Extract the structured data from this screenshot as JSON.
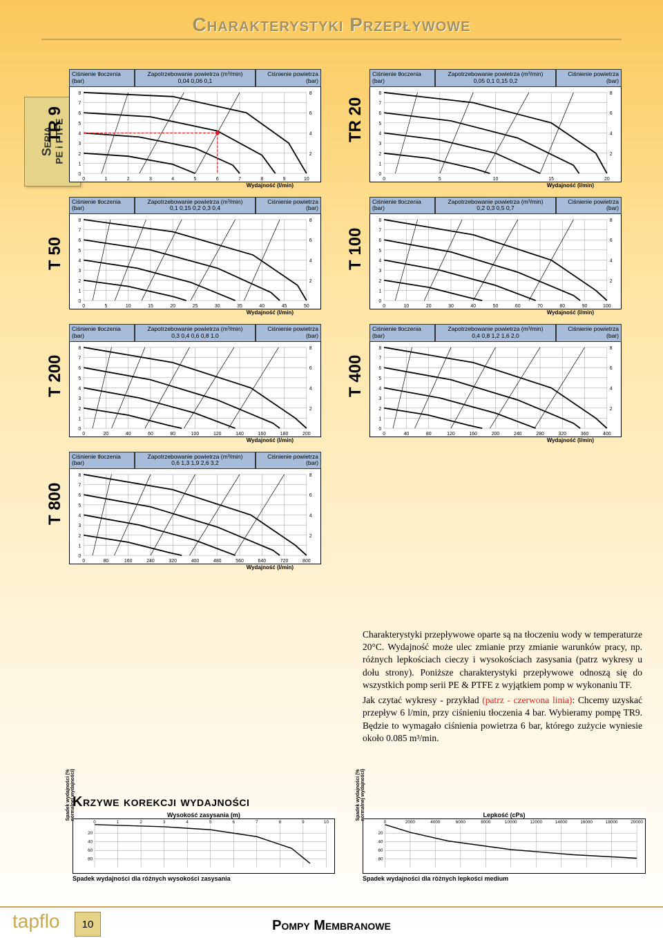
{
  "page_title": "Charakterystyki Przepływowe",
  "side_label_line1": "Seria",
  "side_label_line2": "PE i PTFE",
  "common": {
    "head_left": "Ciśnienie tłoczenia (bar)",
    "head_mid_prefix": "Zapotrzebowanie powietrza (m³/min)",
    "head_right": "Ciśnienie powietrza (bar)",
    "xlabel": "Wydajność (l/min)",
    "y_ticks": [
      0,
      1,
      2,
      3,
      4,
      5,
      6,
      7,
      8
    ],
    "right_ticks": [
      2,
      4,
      6,
      8
    ],
    "grid_color": "#999",
    "curve_color": "#000",
    "bg_color": "#ffffff",
    "head_bg": "#a6bcd9"
  },
  "charts": [
    {
      "model": "TR 9",
      "air_vals": "0,04   0,06   0,1",
      "x_ticks": [
        0,
        1,
        2,
        3,
        4,
        5,
        6,
        7,
        8,
        9,
        10
      ],
      "example_line": true,
      "curves": [
        [
          [
            0,
            8
          ],
          [
            4,
            7.6
          ],
          [
            7.3,
            6
          ],
          [
            9.2,
            3
          ],
          [
            10,
            0
          ]
        ],
        [
          [
            0,
            6
          ],
          [
            3,
            5.6
          ],
          [
            6,
            4.2
          ],
          [
            8,
            1.8
          ],
          [
            8.6,
            0
          ]
        ],
        [
          [
            0,
            4
          ],
          [
            2.5,
            3.6
          ],
          [
            5,
            2.5
          ],
          [
            6.7,
            0.8
          ],
          [
            7,
            0
          ]
        ],
        [
          [
            0,
            2
          ],
          [
            2,
            1.7
          ],
          [
            4,
            0.9
          ],
          [
            5,
            0
          ]
        ]
      ],
      "air_curves": [
        [
          [
            2,
            8
          ],
          [
            0.8,
            0
          ]
        ],
        [
          [
            4.5,
            8
          ],
          [
            2.5,
            0
          ]
        ],
        [
          [
            7,
            8
          ],
          [
            5,
            0
          ]
        ]
      ]
    },
    {
      "model": "TR 20",
      "air_vals": "0,05   0,1   0,15   0,2",
      "x_ticks": [
        0,
        5,
        10,
        15,
        20
      ],
      "curves": [
        [
          [
            0,
            8
          ],
          [
            8,
            7
          ],
          [
            15,
            5
          ],
          [
            19,
            2
          ],
          [
            20,
            0
          ]
        ],
        [
          [
            0,
            6
          ],
          [
            6,
            5.2
          ],
          [
            12,
            3.5
          ],
          [
            17,
            0.8
          ],
          [
            17.5,
            0
          ]
        ],
        [
          [
            0,
            4
          ],
          [
            5,
            3.3
          ],
          [
            10,
            2
          ],
          [
            14,
            0
          ]
        ],
        [
          [
            0,
            2
          ],
          [
            4,
            1.5
          ],
          [
            8,
            0.5
          ],
          [
            9.5,
            0
          ]
        ]
      ],
      "air_curves": [
        [
          [
            3,
            8
          ],
          [
            1,
            0
          ]
        ],
        [
          [
            8,
            8
          ],
          [
            5,
            0
          ]
        ],
        [
          [
            13,
            8
          ],
          [
            9,
            0
          ]
        ],
        [
          [
            17,
            8
          ],
          [
            14,
            0
          ]
        ]
      ]
    },
    {
      "model": "T 50",
      "air_vals": "0,1   0,15   0,2   0,3   0,4",
      "x_ticks": [
        0,
        5,
        10,
        15,
        20,
        25,
        30,
        35,
        40,
        45,
        50
      ],
      "curves": [
        [
          [
            0,
            8
          ],
          [
            20,
            6.8
          ],
          [
            38,
            4.5
          ],
          [
            48,
            1.5
          ],
          [
            50,
            0
          ]
        ],
        [
          [
            0,
            6
          ],
          [
            15,
            5
          ],
          [
            30,
            3.2
          ],
          [
            42,
            0.8
          ],
          [
            44,
            0
          ]
        ],
        [
          [
            0,
            4
          ],
          [
            12,
            3.2
          ],
          [
            24,
            1.8
          ],
          [
            34,
            0
          ]
        ],
        [
          [
            0,
            2
          ],
          [
            10,
            1.4
          ],
          [
            20,
            0.4
          ],
          [
            23,
            0
          ]
        ]
      ],
      "air_curves": [
        [
          [
            6,
            8
          ],
          [
            2,
            0
          ]
        ],
        [
          [
            14,
            8
          ],
          [
            7,
            0
          ]
        ],
        [
          [
            22,
            8
          ],
          [
            13,
            0
          ]
        ],
        [
          [
            34,
            8
          ],
          [
            24,
            0
          ]
        ],
        [
          [
            44,
            8
          ],
          [
            36,
            0
          ]
        ]
      ]
    },
    {
      "model": "T 100",
      "air_vals": "0,2   0,3   0,5   0,7",
      "x_ticks": [
        0,
        10,
        20,
        30,
        40,
        50,
        60,
        70,
        80,
        90,
        100
      ],
      "curves": [
        [
          [
            0,
            8
          ],
          [
            40,
            6.5
          ],
          [
            75,
            4
          ],
          [
            95,
            1
          ],
          [
            100,
            0
          ]
        ],
        [
          [
            0,
            6
          ],
          [
            30,
            4.8
          ],
          [
            60,
            2.8
          ],
          [
            85,
            0.5
          ],
          [
            88,
            0
          ]
        ],
        [
          [
            0,
            4
          ],
          [
            25,
            3
          ],
          [
            50,
            1.5
          ],
          [
            68,
            0
          ]
        ],
        [
          [
            0,
            2
          ],
          [
            20,
            1.3
          ],
          [
            38,
            0.3
          ],
          [
            44,
            0
          ]
        ]
      ],
      "air_curves": [
        [
          [
            15,
            8
          ],
          [
            5,
            0
          ]
        ],
        [
          [
            35,
            8
          ],
          [
            18,
            0
          ]
        ],
        [
          [
            60,
            8
          ],
          [
            40,
            0
          ]
        ],
        [
          [
            85,
            8
          ],
          [
            65,
            0
          ]
        ]
      ]
    },
    {
      "model": "T 200",
      "air_vals": "0,3   0,4   0,6   0,8   1,0",
      "x_ticks": [
        0,
        20,
        40,
        60,
        80,
        100,
        120,
        140,
        160,
        180,
        200
      ],
      "curves": [
        [
          [
            0,
            8
          ],
          [
            80,
            6.5
          ],
          [
            150,
            4
          ],
          [
            190,
            1
          ],
          [
            200,
            0
          ]
        ],
        [
          [
            0,
            6
          ],
          [
            60,
            4.8
          ],
          [
            120,
            2.8
          ],
          [
            170,
            0.5
          ],
          [
            176,
            0
          ]
        ],
        [
          [
            0,
            4
          ],
          [
            50,
            3
          ],
          [
            100,
            1.5
          ],
          [
            136,
            0
          ]
        ],
        [
          [
            0,
            2
          ],
          [
            40,
            1.3
          ],
          [
            76,
            0.3
          ],
          [
            88,
            0
          ]
        ]
      ],
      "air_curves": [
        [
          [
            25,
            8
          ],
          [
            8,
            0
          ]
        ],
        [
          [
            55,
            8
          ],
          [
            25,
            0
          ]
        ],
        [
          [
            95,
            8
          ],
          [
            55,
            0
          ]
        ],
        [
          [
            135,
            8
          ],
          [
            90,
            0
          ]
        ],
        [
          [
            175,
            8
          ],
          [
            130,
            0
          ]
        ]
      ]
    },
    {
      "model": "T 400",
      "air_vals": "0,4   0,8   1,2   1,6   2,0",
      "x_ticks": [
        0,
        40,
        80,
        120,
        160,
        200,
        240,
        280,
        320,
        360,
        400
      ],
      "curves": [
        [
          [
            0,
            8
          ],
          [
            160,
            6.5
          ],
          [
            300,
            4
          ],
          [
            380,
            1
          ],
          [
            400,
            0
          ]
        ],
        [
          [
            0,
            6
          ],
          [
            120,
            4.8
          ],
          [
            240,
            2.8
          ],
          [
            340,
            0.5
          ],
          [
            352,
            0
          ]
        ],
        [
          [
            0,
            4
          ],
          [
            100,
            3
          ],
          [
            200,
            1.5
          ],
          [
            272,
            0
          ]
        ],
        [
          [
            0,
            2
          ],
          [
            80,
            1.3
          ],
          [
            152,
            0.3
          ],
          [
            176,
            0
          ]
        ]
      ],
      "air_curves": [
        [
          [
            50,
            8
          ],
          [
            16,
            0
          ]
        ],
        [
          [
            120,
            8
          ],
          [
            55,
            0
          ]
        ],
        [
          [
            200,
            8
          ],
          [
            120,
            0
          ]
        ],
        [
          [
            280,
            8
          ],
          [
            190,
            0
          ]
        ],
        [
          [
            360,
            8
          ],
          [
            270,
            0
          ]
        ]
      ]
    },
    {
      "model": "T 800",
      "air_vals": "0,6   1,3   1,9   2,6   3,2",
      "x_ticks": [
        0,
        80,
        160,
        240,
        320,
        400,
        480,
        560,
        640,
        720,
        800
      ],
      "curves": [
        [
          [
            0,
            8
          ],
          [
            320,
            6.5
          ],
          [
            600,
            4
          ],
          [
            760,
            1
          ],
          [
            800,
            0
          ]
        ],
        [
          [
            0,
            6
          ],
          [
            240,
            4.8
          ],
          [
            480,
            2.8
          ],
          [
            680,
            0.5
          ],
          [
            704,
            0
          ]
        ],
        [
          [
            0,
            4
          ],
          [
            200,
            3
          ],
          [
            400,
            1.5
          ],
          [
            544,
            0
          ]
        ],
        [
          [
            0,
            2
          ],
          [
            160,
            1.3
          ],
          [
            304,
            0.3
          ],
          [
            352,
            0
          ]
        ]
      ],
      "air_curves": [
        [
          [
            100,
            8
          ],
          [
            32,
            0
          ]
        ],
        [
          [
            240,
            8
          ],
          [
            110,
            0
          ]
        ],
        [
          [
            400,
            8
          ],
          [
            240,
            0
          ]
        ],
        [
          [
            560,
            8
          ],
          [
            380,
            0
          ]
        ],
        [
          [
            720,
            8
          ],
          [
            540,
            0
          ]
        ]
      ]
    }
  ],
  "description": {
    "p1": "Charakterystyki przepływowe oparte są na tłoczeniu wody w temperaturze 20°C. Wydajność może ulec zmianie przy zmianie warunków pracy, np. różnych lepkościach cieczy i wysokościach zasysania (patrz wykresy u dołu strony). Poniższe charakterystyki przepływowe odnoszą się do wszystkich pomp serii PE & PTFE z wyjątkiem pomp w wykonaniu TF.",
    "p2a": "Jak czytać wykresy - przykład ",
    "p2red": "(patrz - czerwona linia)",
    "p2b": ": Chcemy uzyskać przepływ 6 l/min, przy ciśnieniu tłoczenia 4 bar. Wybieramy pompę TR9. Będzie to wymagało ciśnienia powietrza 6 bar, którego zużycie wyniesie około 0.085 m³/min."
  },
  "correction_title": "Krzywe korekcji wydajności",
  "correction_charts": [
    {
      "title": "Wysokość zasysania (m)",
      "x_ticks": [
        0,
        1,
        2,
        3,
        4,
        5,
        6,
        7,
        8,
        9,
        10
      ],
      "y_ticks": [
        20,
        40,
        60,
        80
      ],
      "ylabel": "Spadek wydajności (% normalnej wydajności)",
      "caption": "Spadek wydajności dla różnych wysokości zasysania",
      "curve": [
        [
          0,
          0
        ],
        [
          3,
          5
        ],
        [
          5,
          12
        ],
        [
          7,
          28
        ],
        [
          8.5,
          55
        ],
        [
          9.3,
          90
        ]
      ]
    },
    {
      "title": "Lepkość (cPs)",
      "x_ticks": [
        0,
        2000,
        4000,
        6000,
        8000,
        10000,
        12000,
        14000,
        16000,
        18000,
        20000
      ],
      "y_ticks": [
        20,
        40,
        60,
        80
      ],
      "ylabel": "Spadek wydajności (% normalnej wydajności)",
      "caption": "Spadek wydajności dla różnych lepkości medium",
      "curve": [
        [
          0,
          0
        ],
        [
          2000,
          18
        ],
        [
          5000,
          38
        ],
        [
          10000,
          58
        ],
        [
          15000,
          70
        ],
        [
          20000,
          78
        ]
      ]
    }
  ],
  "footer": {
    "logo": "tapflo",
    "page_number": "10",
    "title": "Pompy Membranowe"
  }
}
